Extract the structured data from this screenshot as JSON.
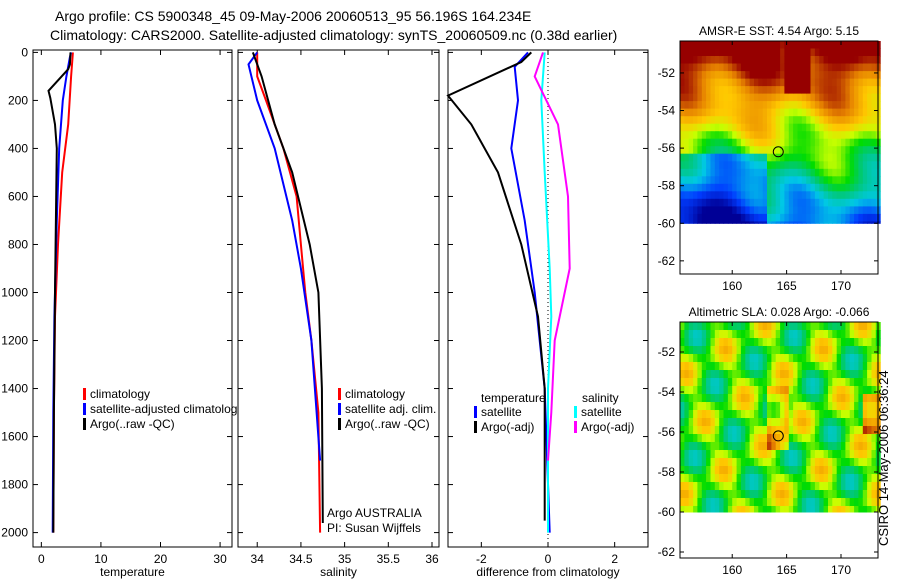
{
  "titles": {
    "line1": "Argo profile: CS 5900348_45 09-May-2006 20060513_95 56.196S 164.234E",
    "line2": "Climatology: CARS2000. Satellite-adjusted climatology: synTS_20060509.nc (0.38d earlier)"
  },
  "footer": "CSIRO 14-May-2006 06:36:24",
  "colors": {
    "red": "#ff0000",
    "blue": "#0000ff",
    "black": "#000000",
    "cyan": "#00ffff",
    "magenta": "#ff00ff"
  },
  "chart_data": [
    {
      "type": "line",
      "xlabel": "temperature",
      "ylabel": "",
      "xlim": [
        -1.4,
        32
      ],
      "ylim": [
        2060,
        -10
      ],
      "xticks": [
        "0",
        "10",
        "20",
        "30"
      ],
      "xtick_values": [
        0,
        10,
        20,
        30
      ],
      "yticks": [
        "0",
        "200",
        "400",
        "600",
        "800",
        "1000",
        "1200",
        "1400",
        "1600",
        "1800",
        "2000"
      ],
      "legend": [
        "climatology",
        "satellite-adjusted climatolog",
        "Argo(..raw -QC)"
      ],
      "series": [
        {
          "name": "climatology",
          "color": "red",
          "depth": [
            0,
            100,
            300,
            500,
            800,
            1100,
            1500,
            2000
          ],
          "values": [
            5.3,
            5.0,
            4.5,
            3.5,
            2.8,
            2.3,
            2.1,
            2.0
          ]
        },
        {
          "name": "satellite-adjusted climatology",
          "color": "blue",
          "depth": [
            0,
            20,
            100,
            200,
            400,
            700,
            1100,
            1500,
            2000
          ],
          "values": [
            5.0,
            4.8,
            4.2,
            3.6,
            3.0,
            2.6,
            2.2,
            2.0,
            1.9
          ]
        },
        {
          "name": "Argo(..raw -QC)",
          "color": "black",
          "depth": [
            0,
            50,
            70,
            160,
            190,
            300,
            400,
            600,
            1000,
            1500,
            2000
          ],
          "values": [
            4.9,
            4.8,
            4.5,
            1.2,
            1.5,
            2.3,
            2.6,
            2.5,
            2.3,
            2.1,
            2.0
          ]
        }
      ]
    },
    {
      "type": "line",
      "xlabel": "salinity",
      "xlim": [
        33.78,
        36.08
      ],
      "ylim": [
        2060,
        -10
      ],
      "xticks": [
        "34",
        "34.5",
        "35",
        "35.5",
        "36"
      ],
      "xtick_values": [
        34,
        34.5,
        35,
        35.5,
        36
      ],
      "legend": [
        "climatology",
        "satellite adj. clim.",
        "Argo(..raw -QC)"
      ],
      "annotation": [
        "Argo AUSTRALIA",
        "PI: Susan Wijffels"
      ],
      "series": [
        {
          "name": "climatology",
          "color": "red",
          "depth": [
            0,
            100,
            200,
            400,
            600,
            800,
            1000,
            1200,
            1500,
            2000
          ],
          "values": [
            34.0,
            34.0,
            34.1,
            34.3,
            34.45,
            34.5,
            34.55,
            34.62,
            34.7,
            34.72
          ]
        },
        {
          "name": "satellite adj. clim.",
          "color": "blue",
          "depth": [
            0,
            50,
            200,
            400,
            700,
            900,
            1200,
            1700
          ],
          "values": [
            34.0,
            33.9,
            34.0,
            34.2,
            34.4,
            34.5,
            34.62,
            34.72
          ]
        },
        {
          "name": "Argo(..raw -QC)",
          "color": "black",
          "depth": [
            0,
            100,
            300,
            500,
            800,
            1000,
            1400,
            1960
          ],
          "values": [
            33.95,
            34.05,
            34.2,
            34.4,
            34.6,
            34.7,
            34.74,
            34.75
          ]
        }
      ]
    },
    {
      "type": "line",
      "xlabel": "difference from climatology",
      "xlim": [
        -3,
        3
      ],
      "ylim": [
        2060,
        -10
      ],
      "xticks": [
        "-2",
        "0",
        "2"
      ],
      "xtick_values": [
        -2,
        0,
        2
      ],
      "legend_headers": [
        "temperature",
        "salinity"
      ],
      "legend": [
        "satellite",
        "Argo(-adj)",
        "satellite",
        "Argo(-adj)"
      ],
      "series": [
        {
          "name": "temperature satellite",
          "color": "blue",
          "depth": [
            0,
            60,
            200,
            400,
            700,
            1000,
            1400,
            2000
          ],
          "values": [
            -0.6,
            -1.0,
            -0.9,
            -1.1,
            -0.7,
            -0.4,
            -0.1,
            0.05
          ]
        },
        {
          "name": "temperature Argo(-adj)",
          "color": "black",
          "depth": [
            0,
            40,
            180,
            300,
            500,
            800,
            1100,
            1400,
            1950
          ],
          "values": [
            -0.5,
            -0.8,
            -3.0,
            -2.3,
            -1.5,
            -0.8,
            -0.3,
            -0.1,
            -0.1
          ]
        },
        {
          "name": "salinity satellite",
          "color": "cyan",
          "depth": [
            0,
            200,
            500,
            900,
            1100,
            1400,
            2000
          ],
          "values": [
            -0.1,
            -0.2,
            -0.1,
            0.05,
            0.1,
            0.0,
            0.0
          ]
        },
        {
          "name": "salinity Argo(-adj)",
          "color": "magenta",
          "depth": [
            0,
            100,
            300,
            600,
            900,
            1200,
            1500,
            1700
          ],
          "values": [
            -0.15,
            -0.4,
            0.3,
            0.6,
            0.65,
            0.2,
            0.1,
            0.0
          ]
        }
      ]
    },
    {
      "type": "heatmap",
      "title": "AMSR-E SST: 4.54 Argo: 5.15",
      "field": "sst",
      "xlim": [
        155.2,
        173.4
      ],
      "ylim": [
        -62.7,
        -50.3
      ],
      "xticks": [
        "160",
        "165",
        "170"
      ],
      "xtick_values": [
        160,
        165,
        170
      ],
      "yticks": [
        "-52",
        "-54",
        "-56",
        "-58",
        "-60",
        "-62"
      ],
      "ytick_values": [
        -52,
        -54,
        -56,
        -58,
        -60,
        -62
      ],
      "marker": {
        "lon": 164.234,
        "lat": -56.196
      }
    },
    {
      "type": "heatmap",
      "title": "Altimetric SLA: 0.028 Argo: -0.066",
      "field": "sla",
      "xlim": [
        155.2,
        173.4
      ],
      "ylim": [
        -62.3,
        -50.5
      ],
      "xticks": [
        "160",
        "165",
        "170"
      ],
      "xtick_values": [
        160,
        165,
        170
      ],
      "yticks": [
        "-52",
        "-54",
        "-56",
        "-58",
        "-60",
        "-62"
      ],
      "ytick_values": [
        -52,
        -54,
        -56,
        -58,
        -60,
        -62
      ],
      "marker": {
        "lon": 164.234,
        "lat": -56.196
      }
    }
  ]
}
